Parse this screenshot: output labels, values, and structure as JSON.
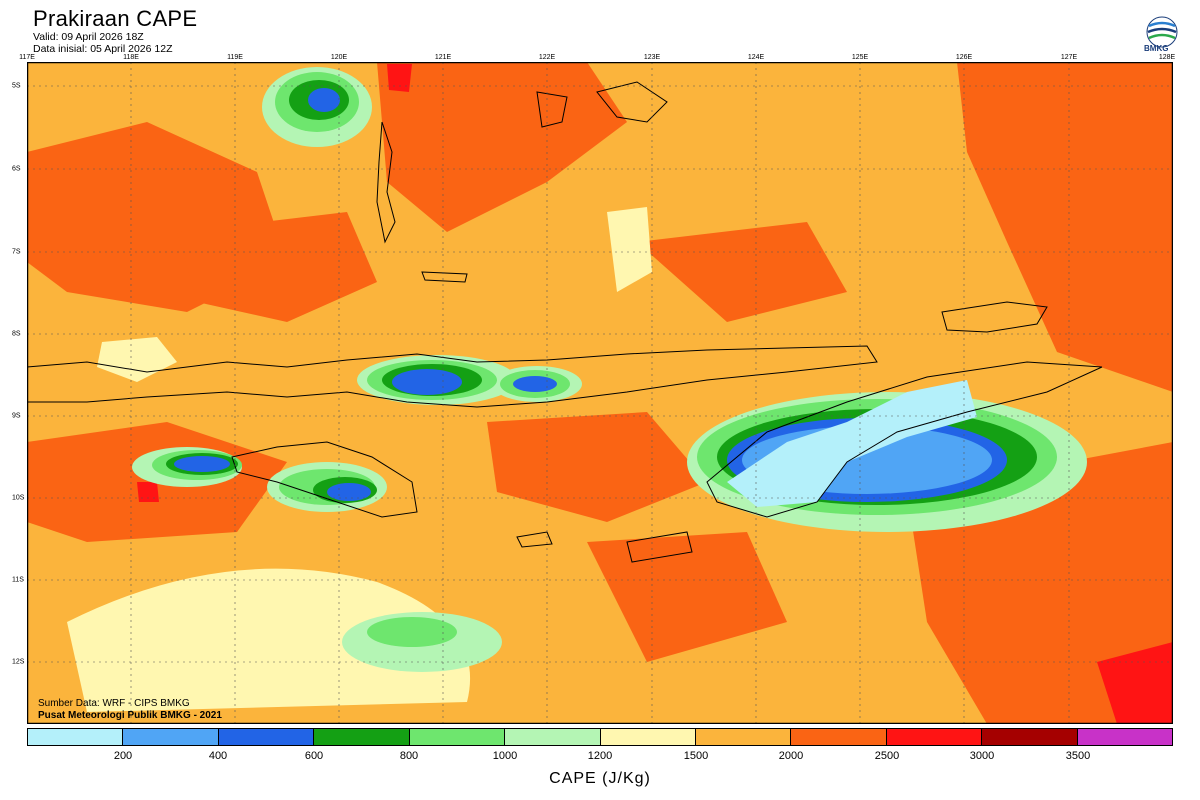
{
  "header": {
    "title": "Prakiraan CAPE",
    "valid": "Valid: 09 April 2026 18Z",
    "init": "Data inisial: 05 April 2026 12Z"
  },
  "logo": {
    "text": "BMKG",
    "icon": "bmkg-logo-icon"
  },
  "axes": {
    "lon_labels": [
      "117E",
      "118E",
      "119E",
      "120E",
      "121E",
      "122E",
      "123E",
      "124E",
      "125E",
      "126E",
      "127E",
      "128E"
    ],
    "lat_labels": [
      "5S",
      "6S",
      "7S",
      "8S",
      "9S",
      "10S",
      "11S",
      "12S"
    ]
  },
  "credits": {
    "source": "Sumber Data: WRF - CIPS BMKG",
    "org": "Pusat Meteorologi Publik BMKG - 2021"
  },
  "colorbar": {
    "colors": [
      "#b4f0fa",
      "#50a5f5",
      "#2264e6",
      "#14a014",
      "#6ee66e",
      "#b4f5b4",
      "#fff7b0",
      "#fbb43c",
      "#fa6414",
      "#ff1414",
      "#a50000",
      "#c832c8"
    ],
    "ticks": [
      "200",
      "400",
      "600",
      "800",
      "1000",
      "1200",
      "1500",
      "2000",
      "2500",
      "3000",
      "3500"
    ],
    "label": "CAPE (J/Kg)"
  },
  "palette": {
    "background": "#fbb43c",
    "high": "#fa6414",
    "very_high": "#ff1414",
    "low": "#fff7b0"
  }
}
